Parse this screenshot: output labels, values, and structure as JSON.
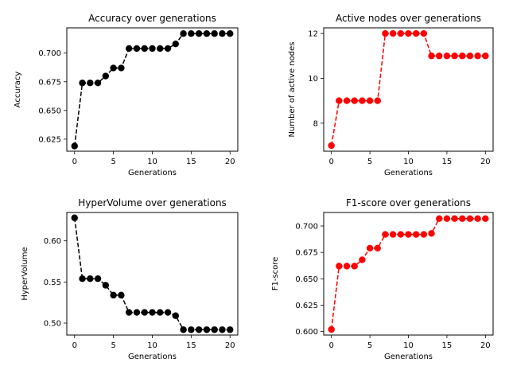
{
  "chart_data": [
    {
      "type": "line",
      "title": "Accuracy over generations",
      "xlabel": "Generations",
      "ylabel": "Accuracy",
      "xlim": [
        -1,
        21
      ],
      "ylim": [
        0.6145,
        0.722
      ],
      "xticks": [
        0,
        5,
        10,
        15,
        20
      ],
      "yticks": [
        0.625,
        0.65,
        0.675,
        0.7
      ],
      "ytick_labels": [
        "0.625",
        "0.650",
        "0.675",
        "0.700"
      ],
      "color": "#000000",
      "line_style": "dashed",
      "marker": "circle",
      "x": [
        0,
        1,
        2,
        3,
        4,
        5,
        6,
        7,
        8,
        9,
        10,
        11,
        12,
        13,
        14,
        15,
        16,
        17,
        18,
        19,
        20
      ],
      "y": [
        0.619,
        0.674,
        0.674,
        0.674,
        0.68,
        0.687,
        0.687,
        0.704,
        0.704,
        0.704,
        0.704,
        0.704,
        0.704,
        0.708,
        0.717,
        0.717,
        0.717,
        0.717,
        0.717,
        0.717,
        0.717
      ]
    },
    {
      "type": "line",
      "title": "Active nodes over generations",
      "xlabel": "Generations",
      "ylabel": "Number of active nodes",
      "xlim": [
        -1,
        21
      ],
      "ylim": [
        6.75,
        12.25
      ],
      "xticks": [
        0,
        5,
        10,
        15,
        20
      ],
      "yticks": [
        8,
        10,
        12
      ],
      "ytick_labels": [
        "8",
        "10",
        "12"
      ],
      "color": "#ff0000",
      "line_style": "dashed",
      "marker": "circle",
      "x": [
        0,
        1,
        2,
        3,
        4,
        5,
        6,
        7,
        8,
        9,
        10,
        11,
        12,
        13,
        14,
        15,
        16,
        17,
        18,
        19,
        20
      ],
      "y": [
        7,
        9,
        9,
        9,
        9,
        9,
        9,
        12,
        12,
        12,
        12,
        12,
        12,
        11,
        11,
        11,
        11,
        11,
        11,
        11,
        11
      ]
    },
    {
      "type": "line",
      "title": "HyperVolume over generations",
      "xlabel": "Generations",
      "ylabel": "HyperVolume",
      "xlim": [
        -1,
        21
      ],
      "ylim": [
        0.4855,
        0.6345
      ],
      "xticks": [
        0,
        5,
        10,
        15,
        20
      ],
      "yticks": [
        0.5,
        0.55,
        0.6
      ],
      "ytick_labels": [
        "0.50",
        "0.55",
        "0.60"
      ],
      "color": "#000000",
      "line_style": "dashed",
      "marker": "circle",
      "x": [
        0,
        1,
        2,
        3,
        4,
        5,
        6,
        7,
        8,
        9,
        10,
        11,
        12,
        13,
        14,
        15,
        16,
        17,
        18,
        19,
        20
      ],
      "y": [
        0.628,
        0.554,
        0.554,
        0.554,
        0.546,
        0.534,
        0.534,
        0.513,
        0.513,
        0.513,
        0.513,
        0.513,
        0.513,
        0.509,
        0.492,
        0.492,
        0.492,
        0.492,
        0.492,
        0.492,
        0.492
      ]
    },
    {
      "type": "line",
      "title": "F1-score over generations",
      "xlabel": "Generations",
      "ylabel": "F1-score",
      "xlim": [
        -1,
        21
      ],
      "ylim": [
        0.5967,
        0.7128
      ],
      "xticks": [
        0,
        5,
        10,
        15,
        20
      ],
      "yticks": [
        0.6,
        0.625,
        0.65,
        0.675,
        0.7
      ],
      "ytick_labels": [
        "0.600",
        "0.625",
        "0.650",
        "0.675",
        "0.700"
      ],
      "color": "#ff0000",
      "line_style": "dashed",
      "marker": "circle",
      "x": [
        0,
        1,
        2,
        3,
        4,
        5,
        6,
        7,
        8,
        9,
        10,
        11,
        12,
        13,
        14,
        15,
        16,
        17,
        18,
        19,
        20
      ],
      "y": [
        0.602,
        0.662,
        0.662,
        0.662,
        0.668,
        0.679,
        0.679,
        0.692,
        0.692,
        0.692,
        0.692,
        0.692,
        0.692,
        0.693,
        0.707,
        0.707,
        0.707,
        0.707,
        0.707,
        0.707,
        0.707
      ]
    }
  ]
}
